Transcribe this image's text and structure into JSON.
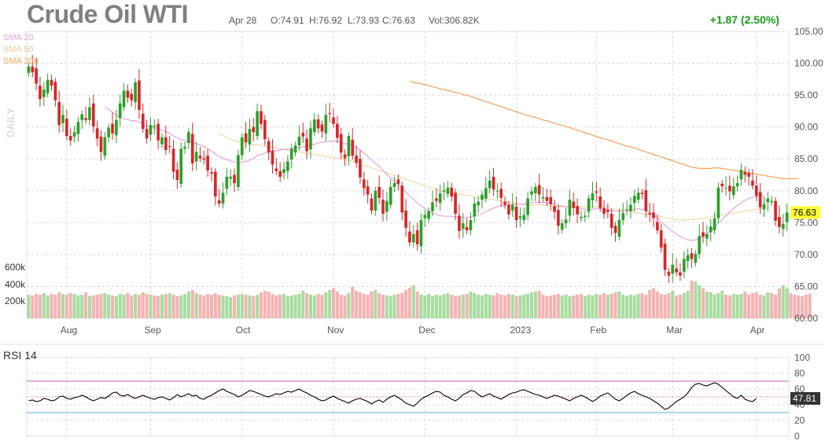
{
  "header": {
    "title": "Crude Oil WTI",
    "date": "Apr 28",
    "open": "O:74.91",
    "high": "H:76.92",
    "low": "L:73.93",
    "close": "C:76.63",
    "volume": "Vol:306.82K",
    "change": "+1.87 (2.50%)"
  },
  "legend": {
    "sma20": "SMA 20",
    "sma50": "SMA 50",
    "sma200": "SMA 200",
    "daily": "DAILY"
  },
  "rsi": {
    "label": "RSI 14",
    "last_value": "47.81"
  },
  "price_badge": "76.63",
  "volume_axis_labels": [
    "600k",
    "400k",
    "200k"
  ],
  "colors": {
    "up": "#2ca02c",
    "down": "#d62728",
    "vol_up": "#a8dca0",
    "vol_down": "#f4b3b3",
    "sma20": "#e8a2e0",
    "sma50": "#f2d8a8",
    "sma200": "#f2a35c",
    "rsi_line": "#000000",
    "rsi_upper": "#c060c0",
    "rsi_lower": "#5fa8d0",
    "badge": "#ffff33"
  },
  "chart_data": {
    "type": "candlestick",
    "price_axis": {
      "ticks": [
        "105.00",
        "100.00",
        "95.00",
        "90.00",
        "85.00",
        "80.00",
        "75.00",
        "70.00",
        "65.00",
        "60.00"
      ],
      "range": [
        60,
        105
      ]
    },
    "x_labels": [
      "Aug",
      "Sep",
      "Oct",
      "Nov",
      "Dec",
      "2023",
      "Feb",
      "Mar",
      "Apr"
    ],
    "rsi_axis": {
      "ticks": [
        "100",
        "80",
        "60",
        "40",
        "20",
        "0"
      ],
      "range": [
        0,
        100
      ],
      "overbought": 70,
      "oversold": 30
    },
    "close_series": [
      99.5,
      98.6,
      96.8,
      94.4,
      95.9,
      97.4,
      96.5,
      94.2,
      90.3,
      91.9,
      88.6,
      87.9,
      89.2,
      90.8,
      92.0,
      91.1,
      93.1,
      90.1,
      88.2,
      86.1,
      88.4,
      89.9,
      89.0,
      91.1,
      93.7,
      95.7,
      94.6,
      94.2,
      97.0,
      92.7,
      89.7,
      88.2,
      90.3,
      90.2,
      87.9,
      88.4,
      86.4,
      86.9,
      83.0,
      81.7,
      86.6,
      86.9,
      89.2,
      84.3,
      86.1,
      85.1,
      84.9,
      83.2,
      82.7,
      79.1,
      78.0,
      79.7,
      82.2,
      82.2,
      81.2,
      85.6,
      88.4,
      87.6,
      89.7,
      89.2,
      92.5,
      90.5,
      88.1,
      86.0,
      84.1,
      83.1,
      82.2,
      83.4,
      84.6,
      86.6,
      87.1,
      88.5,
      88.5,
      86.2,
      89.8,
      91.2,
      89.8,
      89.3,
      91.9,
      92.1,
      90.5,
      88.3,
      86.0,
      85.1,
      88.6,
      85.5,
      84.4,
      82.1,
      80.4,
      79.4,
      76.9,
      80.0,
      78.9,
      76.4,
      78.4,
      80.6,
      81.2,
      81.1,
      76.6,
      74.2,
      71.9,
      73.2,
      71.6,
      75.4,
      76.2,
      76.8,
      78.2,
      78.4,
      79.6,
      80.1,
      80.5,
      79.1,
      76.4,
      73.7,
      74.9,
      73.8,
      75.4,
      78.0,
      78.3,
      79.4,
      80.4,
      81.6,
      80.2,
      80.0,
      78.9,
      77.8,
      76.3,
      77.8,
      75.4,
      76.0,
      76.2,
      78.8,
      79.9,
      80.6,
      79.4,
      79.0,
      78.4,
      77.9,
      76.7,
      74.5,
      74.9,
      75.5,
      78.6,
      77.3,
      76.3,
      75.9,
      76.1,
      78.8,
      79.6,
      79.7,
      77.3,
      76.4,
      76.7,
      74.2,
      73.4,
      75.4,
      76.5,
      77.1,
      77.8,
      79.2,
      79.7,
      79.5,
      76.8,
      76.3,
      75.7,
      73.8,
      71.1,
      67.6,
      66.7,
      68.4,
      67.2,
      66.7,
      69.3,
      69.9,
      69.3,
      70.1,
      72.9,
      72.8,
      73.2,
      74.4,
      75.7,
      80.5,
      80.7,
      80.5,
      79.9,
      80.7,
      81.2,
      83.3,
      82.5,
      82.2,
      80.8,
      79.2,
      77.4,
      77.9,
      78.8,
      78.4,
      75.3,
      74.3,
      74.8,
      76.6
    ],
    "rsi_series": [
      45,
      46,
      44,
      45,
      48,
      47,
      45,
      46,
      50,
      51,
      48,
      47,
      49,
      50,
      52,
      50,
      47,
      45,
      47,
      49,
      48,
      51,
      55,
      56,
      52,
      51,
      53,
      50,
      48,
      50,
      52,
      50,
      48,
      47,
      49,
      50,
      48,
      46,
      49,
      53,
      50,
      52,
      54,
      51,
      52,
      48,
      47,
      50,
      52,
      55,
      58,
      60,
      57,
      55,
      53,
      50,
      52,
      55,
      58,
      57,
      55,
      53,
      51,
      50,
      52,
      54,
      53,
      55,
      57,
      56,
      58,
      60,
      57,
      55,
      52,
      50,
      47,
      45,
      46,
      49,
      51,
      48,
      46,
      44,
      42,
      45,
      47,
      48,
      46,
      44,
      41,
      44,
      46,
      43,
      47,
      50,
      52,
      49,
      46,
      42,
      40,
      38,
      42,
      47,
      50,
      52,
      55,
      57,
      56,
      52,
      50,
      47,
      45,
      48,
      53,
      55,
      58,
      57,
      53,
      50,
      52,
      54,
      51,
      49,
      47,
      50,
      53,
      55,
      56,
      58,
      59,
      57,
      55,
      53,
      52,
      50,
      48,
      50,
      52,
      51,
      49,
      47,
      45,
      48,
      50,
      52,
      50,
      47,
      44,
      47,
      51,
      53,
      55,
      51,
      47,
      45,
      48,
      52,
      55,
      57,
      54,
      52,
      50,
      48,
      45,
      42,
      38,
      34,
      36,
      40,
      44,
      47,
      50,
      55,
      62,
      66,
      67,
      65,
      64,
      66,
      68,
      66,
      62,
      58,
      54,
      50,
      48,
      52,
      47,
      45,
      44,
      48
    ],
    "volume_series": [
      300,
      290,
      310,
      300,
      320,
      290,
      310,
      300,
      330,
      310,
      300,
      320,
      310,
      290,
      300,
      330,
      280,
      290,
      300,
      310,
      320,
      300,
      290,
      280,
      310,
      300,
      320,
      290,
      310,
      300,
      330,
      310,
      300,
      290,
      280,
      300,
      310,
      320,
      300,
      280,
      290,
      310,
      340,
      360,
      320,
      300,
      290,
      310,
      300,
      320,
      300,
      290,
      280,
      270,
      290,
      300,
      310,
      300,
      290,
      280,
      300,
      330,
      350,
      340,
      310,
      290,
      300,
      310,
      280,
      290,
      300,
      310,
      350,
      320,
      300,
      290,
      310,
      300,
      330,
      360,
      380,
      340,
      300,
      290,
      320,
      400,
      350,
      330,
      310,
      300,
      340,
      360,
      320,
      300,
      290,
      280,
      300,
      310,
      320,
      360,
      390,
      420,
      340,
      300,
      290,
      310,
      280,
      300,
      290,
      310,
      320,
      300,
      280,
      290,
      300,
      310,
      340,
      320,
      300,
      290,
      310,
      300,
      290,
      320,
      300,
      290,
      310,
      300,
      280,
      290,
      300,
      310,
      330,
      340,
      350,
      300,
      280,
      290,
      300,
      310,
      290,
      300,
      280,
      290,
      300,
      310,
      280,
      300,
      290,
      310,
      300,
      320,
      300,
      310,
      330,
      340,
      300,
      280,
      300,
      290,
      310,
      320,
      300,
      360,
      380,
      340,
      310,
      300,
      320,
      350,
      290,
      300,
      320,
      350,
      480,
      470,
      420,
      380,
      340,
      330,
      300,
      320,
      350,
      300,
      290,
      310,
      300,
      310,
      340,
      300,
      320,
      330,
      300,
      290,
      330,
      320,
      300,
      380,
      420,
      380,
      320,
      300,
      290,
      280,
      300,
      310
    ],
    "sma20_series": [
      null,
      null,
      null,
      null,
      null,
      null,
      null,
      null,
      null,
      null,
      null,
      null,
      null,
      null,
      null,
      null,
      null,
      null,
      null,
      null,
      93.2,
      92.8,
      92.3,
      91.9,
      91.5,
      91.3,
      91.2,
      91.0,
      91.0,
      90.8,
      90.5,
      90.2,
      90.0,
      89.8,
      89.6,
      89.5,
      89.3,
      89.0,
      88.6,
      88.3,
      88.0,
      87.9,
      87.8,
      87.6,
      87.4,
      87.2,
      86.9,
      86.6,
      86.2,
      85.8,
      85.4,
      85.1,
      84.9,
      84.7,
      84.5,
      84.4,
      84.5,
      84.6,
      84.8,
      85.1,
      85.5,
      85.7,
      85.9,
      86.1,
      86.2,
      86.3,
      86.4,
      86.5,
      86.5,
      86.6,
      86.7,
      86.8,
      86.9,
      87.0,
      87.1,
      87.3,
      87.5,
      87.6,
      87.7,
      87.8,
      87.8,
      87.7,
      87.6,
      87.4,
      87.3,
      87.1,
      86.8,
      86.4,
      85.9,
      85.4,
      84.8,
      84.3,
      83.8,
      83.2,
      82.6,
      82.0,
      81.5,
      81.0,
      80.4,
      79.8,
      79.2,
      78.7,
      78.1,
      77.6,
      77.2,
      76.8,
      76.5,
      76.3,
      76.1,
      76.0,
      76.0,
      76.0,
      75.9,
      75.8,
      75.8,
      75.8,
      75.9,
      76.0,
      76.2,
      76.4,
      76.7,
      77.0,
      77.3,
      77.5,
      77.6,
      77.7,
      77.8,
      77.9,
      77.9,
      77.9,
      77.9,
      78.0,
      78.1,
      78.2,
      78.2,
      78.2,
      78.1,
      78.0,
      77.9,
      77.7,
      77.6,
      77.5,
      77.5,
      77.4,
      77.3,
      77.2,
      77.1,
      77.1,
      77.1,
      77.2,
      77.2,
      77.1,
      77.0,
      76.9,
      76.8,
      76.8,
      76.8,
      76.9,
      77.0,
      77.1,
      77.2,
      77.1,
      76.9,
      76.6,
      76.2,
      75.7,
      75.1,
      74.6,
      74.1,
      73.6,
      73.2,
      72.8,
      72.5,
      72.3,
      72.2,
      72.3,
      72.5,
      72.8,
      73.2,
      73.7,
      74.3,
      74.9,
      75.5,
      76.1,
      76.7,
      77.2,
      77.7,
      78.1,
      78.5,
      78.8,
      79.0,
      79.1,
      79.2,
      79.3
    ],
    "sma50_series": [
      null,
      null,
      null,
      null,
      null,
      null,
      null,
      null,
      null,
      null,
      null,
      null,
      null,
      null,
      null,
      null,
      null,
      null,
      null,
      null,
      null,
      null,
      null,
      null,
      null,
      null,
      null,
      null,
      null,
      null,
      null,
      null,
      null,
      null,
      null,
      null,
      null,
      null,
      null,
      null,
      null,
      null,
      null,
      null,
      null,
      null,
      null,
      null,
      null,
      null,
      89.0,
      88.7,
      88.4,
      88.1,
      87.9,
      87.7,
      87.5,
      87.4,
      87.3,
      87.2,
      87.2,
      87.1,
      87.0,
      86.9,
      86.8,
      86.7,
      86.6,
      86.5,
      86.4,
      86.3,
      86.2,
      86.1,
      86.0,
      85.9,
      85.8,
      85.7,
      85.6,
      85.5,
      85.4,
      85.3,
      85.2,
      85.1,
      85.0,
      84.9,
      84.8,
      84.6,
      84.4,
      84.2,
      84.0,
      83.8,
      83.6,
      83.4,
      83.2,
      83.0,
      82.8,
      82.6,
      82.4,
      82.2,
      82.0,
      81.8,
      81.6,
      81.4,
      81.2,
      81.0,
      80.8,
      80.6,
      80.4,
      80.2,
      80.0,
      79.9,
      79.8,
      79.7,
      79.6,
      79.5,
      79.4,
      79.3,
      79.2,
      79.1,
      79.0,
      78.9,
      78.8,
      78.7,
      78.6,
      78.5,
      78.4,
      78.3,
      78.2,
      78.1,
      78.0,
      77.9,
      77.8,
      77.8,
      77.8,
      77.8,
      77.8,
      77.8,
      77.7,
      77.6,
      77.5,
      77.5,
      77.5,
      77.5,
      77.5,
      77.5,
      77.5,
      77.5,
      77.5,
      77.5,
      77.5,
      77.5,
      77.5,
      77.4,
      77.3,
      77.2,
      77.1,
      77.0,
      76.9,
      76.8,
      76.7,
      76.6,
      76.5,
      76.4,
      76.3,
      76.2,
      76.1,
      76.0,
      75.9,
      75.8,
      75.7,
      75.6,
      75.5,
      75.4,
      75.4,
      75.4,
      75.5,
      75.5,
      75.6,
      75.7,
      75.8,
      75.9,
      76.0,
      76.1,
      76.2,
      76.3,
      76.4,
      76.5,
      76.6,
      76.7,
      76.8,
      76.9,
      77.0,
      77.1,
      77.2,
      77.3,
      77.4
    ],
    "sma200_series": [
      null,
      null,
      null,
      null,
      null,
      null,
      null,
      null,
      null,
      null,
      null,
      null,
      null,
      null,
      null,
      null,
      null,
      null,
      null,
      null,
      null,
      null,
      null,
      null,
      null,
      null,
      null,
      null,
      null,
      null,
      null,
      null,
      null,
      null,
      null,
      null,
      null,
      null,
      null,
      null,
      null,
      null,
      null,
      null,
      null,
      null,
      null,
      null,
      null,
      null,
      null,
      null,
      null,
      null,
      null,
      null,
      null,
      null,
      null,
      null,
      null,
      null,
      null,
      null,
      null,
      null,
      null,
      null,
      null,
      null,
      null,
      null,
      null,
      null,
      null,
      null,
      null,
      null,
      null,
      null,
      null,
      null,
      null,
      null,
      null,
      null,
      null,
      null,
      null,
      null,
      null,
      null,
      null,
      null,
      null,
      null,
      null,
      null,
      null,
      null,
      97.2,
      97.0,
      96.9,
      96.8,
      96.6,
      96.5,
      96.3,
      96.2,
      96.0,
      95.9,
      95.7,
      95.6,
      95.4,
      95.3,
      95.1,
      95.0,
      94.8,
      94.6,
      94.4,
      94.2,
      94.0,
      93.8,
      93.6,
      93.4,
      93.2,
      93.0,
      92.8,
      92.6,
      92.4,
      92.2,
      92.0,
      91.8,
      91.7,
      91.5,
      91.3,
      91.1,
      91.0,
      90.8,
      90.6,
      90.4,
      90.3,
      90.1,
      89.9,
      89.7,
      89.5,
      89.3,
      89.1,
      88.9,
      88.7,
      88.5,
      88.3,
      88.2,
      88.0,
      87.8,
      87.6,
      87.4,
      87.2,
      87.0,
      86.9,
      86.7,
      86.5,
      86.3,
      86.1,
      85.9,
      85.7,
      85.5,
      85.3,
      85.1,
      84.9,
      84.7,
      84.5,
      84.3,
      84.1,
      83.9,
      83.7,
      83.6,
      83.5,
      83.5,
      83.5,
      83.5,
      83.6,
      83.6,
      83.5,
      83.4,
      83.3,
      83.2,
      83.1,
      83.0,
      82.9,
      82.8,
      82.7,
      82.6,
      82.5,
      82.4,
      82.3,
      82.2,
      82.1,
      82.0,
      81.9,
      81.9,
      81.9,
      81.9,
      81.9
    ]
  }
}
